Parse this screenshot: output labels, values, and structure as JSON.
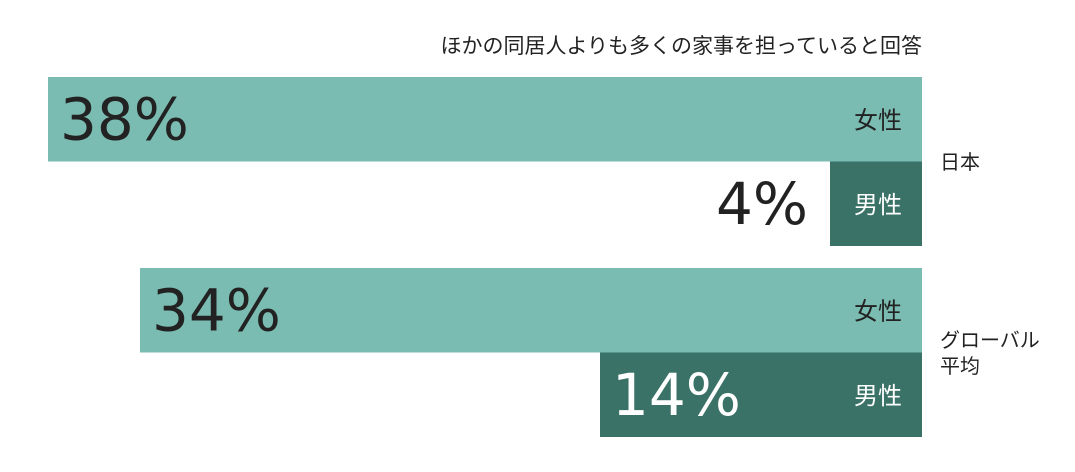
{
  "chart_data": {
    "type": "bar",
    "orientation": "horizontal",
    "title": "ほかの同居人よりも多くの家事を担っていると回答",
    "categories": [
      "日本",
      "グローバル平均"
    ],
    "series": [
      {
        "name": "女性",
        "color": "#7abcb1",
        "values": [
          38,
          34
        ],
        "value_labels": [
          "38%",
          "34%"
        ]
      },
      {
        "name": "男性",
        "color": "#3a7267",
        "values": [
          4,
          14
        ],
        "value_labels": [
          "4%",
          "14%"
        ]
      }
    ]
  }
}
